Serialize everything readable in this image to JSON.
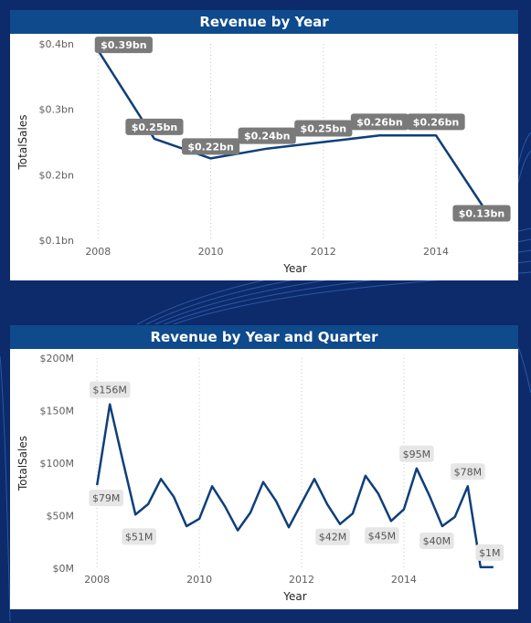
{
  "charts": [
    {
      "title": "Revenue by Year",
      "xlabel": "Year",
      "ylabel": "TotalSales"
    },
    {
      "title": "Revenue by Year and Quarter",
      "xlabel": "Year",
      "ylabel": "TotalSales"
    }
  ],
  "colors": {
    "background": "#0d2a6b",
    "title_bar": "#0e4a8c",
    "line": "#0e3f7a",
    "label_dark": "#7a7a7a",
    "label_light": "#e6e6e6"
  },
  "chart_data": [
    {
      "type": "line",
      "title": "Revenue by Year",
      "xlabel": "Year",
      "ylabel": "TotalSales",
      "x": [
        2008,
        2009,
        2010,
        2011,
        2012,
        2013,
        2014,
        2015
      ],
      "values": [
        0.39,
        0.255,
        0.225,
        0.24,
        0.25,
        0.26,
        0.26,
        0.13
      ],
      "data_labels": [
        "$0.39bn",
        "$0.25bn",
        "$0.22bn",
        "$0.24bn",
        "$0.25bn",
        "$0.26bn",
        "$0.26bn",
        "$0.13bn"
      ],
      "xticks": [
        "2008",
        "2010",
        "2012",
        "2014"
      ],
      "yticks": [
        "$0.1bn",
        "$0.2bn",
        "$0.3bn",
        "$0.4bn"
      ],
      "ylim": [
        0.1,
        0.4
      ],
      "xlim": [
        2007.8,
        2015.2
      ],
      "grid": "vertical-dotted"
    },
    {
      "type": "line",
      "title": "Revenue by Year and Quarter",
      "xlabel": "Year",
      "ylabel": "TotalSales",
      "x": [
        2008.0,
        2008.25,
        2008.5,
        2008.75,
        2009.0,
        2009.25,
        2009.5,
        2009.75,
        2010.0,
        2010.25,
        2010.5,
        2010.75,
        2011.0,
        2011.25,
        2011.5,
        2011.75,
        2012.0,
        2012.25,
        2012.5,
        2012.75,
        2013.0,
        2013.25,
        2013.5,
        2013.75,
        2014.0,
        2014.25,
        2014.5,
        2014.75,
        2015.0,
        2015.25,
        2015.5,
        2015.75
      ],
      "values": [
        79,
        156,
        103,
        51,
        61,
        85,
        68,
        40,
        47,
        78,
        59,
        36,
        53,
        82,
        64,
        39,
        62,
        85,
        61,
        42,
        52,
        88,
        71,
        45,
        56,
        95,
        69,
        40,
        49,
        78,
        1,
        1
      ],
      "labels": [
        {
          "index": 0,
          "text": "$79M",
          "pos": "below"
        },
        {
          "index": 1,
          "text": "$156M",
          "pos": "above"
        },
        {
          "index": 3,
          "text": "$51M",
          "pos": "below"
        },
        {
          "index": 19,
          "text": "$42M",
          "pos": "below"
        },
        {
          "index": 23,
          "text": "$45M",
          "pos": "below"
        },
        {
          "index": 25,
          "text": "$95M",
          "pos": "above"
        },
        {
          "index": 27,
          "text": "$40M",
          "pos": "below"
        },
        {
          "index": 29,
          "text": "$78M",
          "pos": "above"
        },
        {
          "index": 30,
          "text": "$1M",
          "pos": "above"
        }
      ],
      "xticks": [
        "2008",
        "2010",
        "2012",
        "2014"
      ],
      "yticks": [
        "$0M",
        "$50M",
        "$100M",
        "$150M",
        "$200M"
      ],
      "ylim": [
        0,
        200
      ],
      "xlim": [
        2007.8,
        2015.95
      ],
      "grid": "vertical-dotted"
    }
  ]
}
